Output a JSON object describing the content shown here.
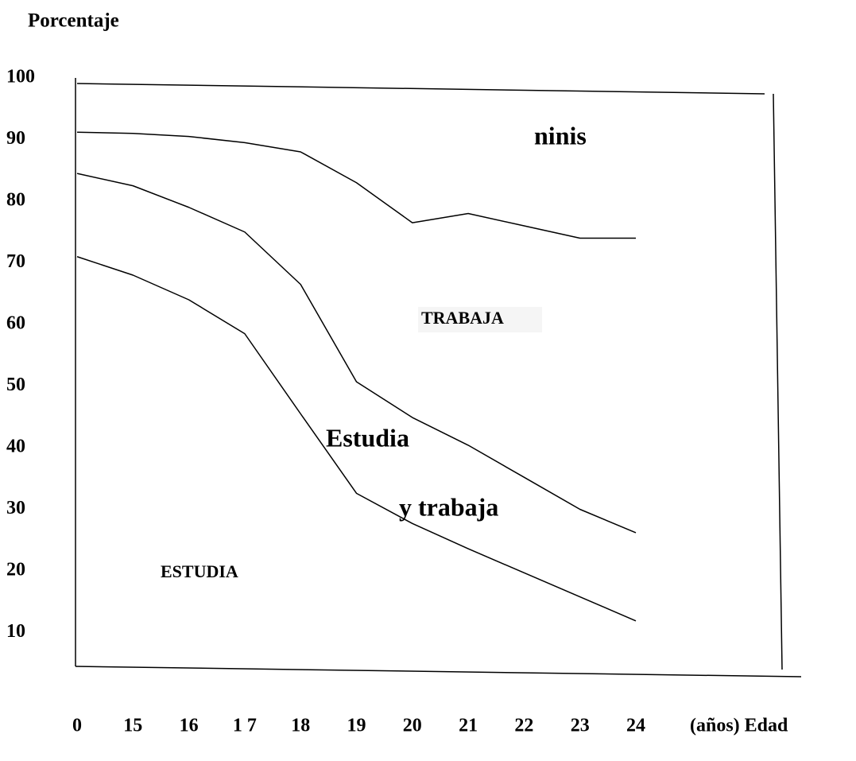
{
  "chart_data": {
    "type": "line",
    "ylabel": "Porcentaje",
    "xlabel": "(años) Edad",
    "categories": [
      "0",
      "15",
      "16",
      "1 7",
      "18",
      "19",
      "20",
      "21",
      "22",
      "23",
      "24"
    ],
    "series": [
      {
        "color": "#000000",
        "values": [
          91.2,
          91,
          90.5,
          89.5,
          88,
          83,
          76.5,
          78,
          76,
          74,
          74
        ]
      },
      {
        "color": "#000000",
        "values": [
          84.5,
          82.5,
          79,
          75,
          66.5,
          50.7,
          44.9,
          40.4,
          35.2,
          30,
          26.2
        ]
      },
      {
        "color": "#000000",
        "values": [
          71,
          68,
          64,
          58.5,
          45.5,
          32.6,
          27.7,
          23.6,
          19.7,
          15.8,
          11.9
        ]
      }
    ],
    "annotations": [
      "ninis",
      "TRABAJA",
      "Estudia",
      "y trabaja",
      "ESTUDIA"
    ],
    "ylim": [
      4,
      100
    ],
    "yticks": [
      100,
      90,
      80,
      70,
      60,
      50,
      40,
      30,
      20,
      10
    ],
    "grid": false
  }
}
